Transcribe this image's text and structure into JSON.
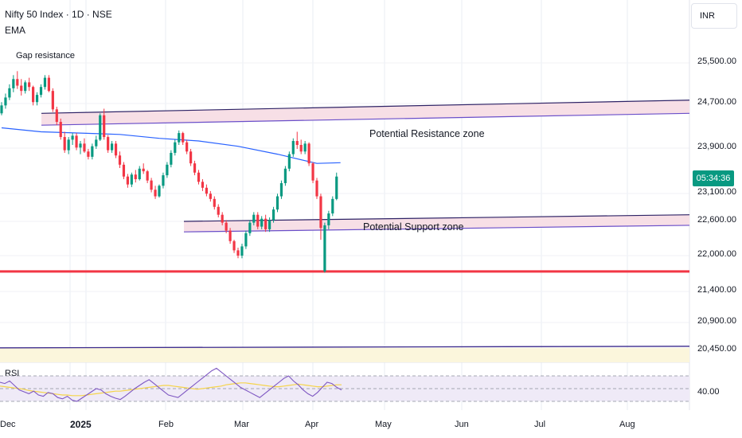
{
  "header": {
    "symbol_title": "Nifty 50 Index · 1D · NSE",
    "indicator": "EMA",
    "currency": "INR"
  },
  "annotations": {
    "gap_note": "Gap resistance",
    "resistance_zone": "Potential Resistance zone",
    "support_zone": "Potential Support zone"
  },
  "price_axis": {
    "labels": [
      "25,500.00",
      "24,700.00",
      "23,900.00",
      "23,100.00",
      "22,600.00",
      "22,000.00",
      "21,400.00",
      "20,900.00",
      "20,450.00"
    ],
    "current_tag": "05:34:36"
  },
  "rsi": {
    "label": "RSI",
    "level_label": "40.00"
  },
  "time_axis": {
    "labels": [
      "Dec",
      "2025",
      "Feb",
      "Mar",
      "Apr",
      "May",
      "Jun",
      "Jul",
      "Aug"
    ]
  },
  "colors": {
    "up": "#089981",
    "down": "#f23645",
    "ema": "#2962ff",
    "zone_line": "#6a4fc9",
    "zone_fill": "#f7dfe6",
    "support_level": "#f23645",
    "rsi_line": "#7e57c2",
    "rsi_ma": "#f5d44a"
  },
  "chart_data": {
    "type": "candlestick",
    "title": "Nifty 50 Index · 1D · NSE",
    "y_range": [
      20400,
      25900
    ],
    "candles": [
      [
        24180,
        24350,
        24150,
        24300
      ],
      [
        24300,
        24480,
        24250,
        24420
      ],
      [
        24420,
        24620,
        24380,
        24560
      ],
      [
        24560,
        24760,
        24500,
        24700
      ],
      [
        24700,
        24820,
        24550,
        24600
      ],
      [
        24600,
        24700,
        24450,
        24520
      ],
      [
        24520,
        24680,
        24480,
        24650
      ],
      [
        24650,
        24720,
        24520,
        24580
      ],
      [
        24580,
        24600,
        24300,
        24350
      ],
      [
        24350,
        24500,
        24300,
        24460
      ],
      [
        24460,
        24620,
        24420,
        24580
      ],
      [
        24580,
        24760,
        24540,
        24720
      ],
      [
        24720,
        24760,
        24500,
        24520
      ],
      [
        24520,
        24560,
        24200,
        24240
      ],
      [
        24240,
        24280,
        24000,
        24050
      ],
      [
        24050,
        24100,
        23780,
        23820
      ],
      [
        23820,
        23900,
        23580,
        23620
      ],
      [
        23620,
        23820,
        23560,
        23780
      ],
      [
        23780,
        23880,
        23700,
        23840
      ],
      [
        23840,
        23880,
        23620,
        23660
      ],
      [
        23660,
        23760,
        23560,
        23720
      ],
      [
        23720,
        23800,
        23580,
        23600
      ],
      [
        23600,
        23640,
        23480,
        23520
      ],
      [
        23520,
        23720,
        23480,
        23680
      ],
      [
        23680,
        23840,
        23640,
        23780
      ],
      [
        23780,
        24180,
        23760,
        24150
      ],
      [
        24150,
        24250,
        23780,
        23820
      ],
      [
        23820,
        23850,
        23580,
        23620
      ],
      [
        23620,
        23760,
        23580,
        23720
      ],
      [
        23720,
        23760,
        23500,
        23540
      ],
      [
        23540,
        23600,
        23350,
        23400
      ],
      [
        23400,
        23440,
        23180,
        23220
      ],
      [
        23220,
        23260,
        23050,
        23100
      ],
      [
        23100,
        23280,
        23060,
        23250
      ],
      [
        23250,
        23320,
        23130,
        23180
      ],
      [
        23180,
        23380,
        23160,
        23340
      ],
      [
        23340,
        23420,
        23260,
        23300
      ],
      [
        23300,
        23320,
        23120,
        23160
      ],
      [
        23160,
        23200,
        22980,
        23020
      ],
      [
        23020,
        23080,
        22880,
        22920
      ],
      [
        22920,
        23100,
        22900,
        23080
      ],
      [
        23080,
        23280,
        23040,
        23240
      ],
      [
        23240,
        23440,
        23200,
        23400
      ],
      [
        23400,
        23620,
        23360,
        23580
      ],
      [
        23580,
        23780,
        23540,
        23740
      ],
      [
        23740,
        23920,
        23700,
        23880
      ],
      [
        23880,
        23900,
        23700,
        23740
      ],
      [
        23740,
        23780,
        23560,
        23600
      ],
      [
        23600,
        23640,
        23380,
        23420
      ],
      [
        23420,
        23460,
        23240,
        23280
      ],
      [
        23280,
        23320,
        23100,
        23140
      ],
      [
        23140,
        23180,
        23000,
        23050
      ],
      [
        23050,
        23100,
        22920,
        22960
      ],
      [
        22960,
        23000,
        22840,
        22880
      ],
      [
        22880,
        22920,
        22720,
        22760
      ],
      [
        22760,
        22800,
        22600,
        22640
      ],
      [
        22640,
        22680,
        22480,
        22520
      ],
      [
        22520,
        22560,
        22360,
        22400
      ],
      [
        22400,
        22440,
        22200,
        22240
      ],
      [
        22240,
        22260,
        22060,
        22100
      ],
      [
        22100,
        22140,
        21980,
        22020
      ],
      [
        22020,
        22200,
        21980,
        22160
      ],
      [
        22160,
        22400,
        22120,
        22360
      ],
      [
        22360,
        22560,
        22320,
        22520
      ],
      [
        22520,
        22680,
        22480,
        22640
      ],
      [
        22640,
        22680,
        22420,
        22460
      ],
      [
        22460,
        22620,
        22420,
        22580
      ],
      [
        22580,
        22640,
        22380,
        22420
      ],
      [
        22420,
        22600,
        22380,
        22560
      ],
      [
        22560,
        22760,
        22520,
        22720
      ],
      [
        22720,
        22960,
        22680,
        22920
      ],
      [
        22920,
        23160,
        22880,
        23120
      ],
      [
        23120,
        23380,
        23080,
        23340
      ],
      [
        23340,
        23600,
        23300,
        23560
      ],
      [
        23560,
        23800,
        23520,
        23760
      ],
      [
        23760,
        23900,
        23640,
        23700
      ],
      [
        23700,
        23780,
        23560,
        23600
      ],
      [
        23600,
        23760,
        23560,
        23720
      ],
      [
        23720,
        23740,
        23380,
        23420
      ],
      [
        23420,
        23440,
        23120,
        23160
      ],
      [
        23160,
        23200,
        22880,
        22920
      ],
      [
        22920,
        22960,
        22260,
        22440
      ],
      [
        21780,
        22520,
        21760,
        22480
      ],
      [
        22480,
        22700,
        22420,
        22660
      ],
      [
        22660,
        22920,
        22620,
        22880
      ],
      [
        22880,
        23280,
        22860,
        23220
      ]
    ],
    "ema": [
      [
        0,
        23960
      ],
      [
        10,
        23900
      ],
      [
        20,
        23880
      ],
      [
        30,
        23860
      ],
      [
        40,
        23800
      ],
      [
        50,
        23760
      ],
      [
        60,
        23680
      ],
      [
        70,
        23560
      ],
      [
        80,
        23420
      ],
      [
        86,
        23430
      ]
    ],
    "support_level": 21780,
    "lower_level": 20620,
    "resistance_zone": {
      "bottom": [
        24000,
        24180
      ],
      "top": [
        24180,
        24380
      ]
    },
    "support_zone": {
      "bottom": [
        22380,
        22480
      ],
      "top": [
        22540,
        22640
      ]
    },
    "rsi_values": [
      60,
      58,
      62,
      55,
      48,
      45,
      42,
      46,
      40,
      38,
      44,
      42,
      36,
      34,
      38,
      32,
      30,
      35,
      40,
      45,
      50,
      48,
      42,
      38,
      35,
      33,
      38,
      44,
      50,
      55,
      60,
      64,
      58,
      52,
      46,
      40,
      38,
      36,
      42,
      48,
      54,
      60,
      66,
      72,
      78,
      82,
      76,
      70,
      64,
      58,
      52,
      48,
      44,
      40,
      36,
      42,
      48,
      54,
      60,
      66,
      70,
      62,
      56,
      48,
      42,
      38,
      44,
      52,
      60,
      58,
      52,
      48
    ],
    "rsi_ma_values": [
      54,
      53,
      52,
      51,
      50,
      49,
      47,
      46,
      45,
      44,
      43,
      42,
      41,
      40,
      40,
      39,
      39,
      39,
      40,
      41,
      42,
      43,
      44,
      45,
      46,
      46,
      47,
      48,
      49,
      50,
      51,
      52,
      53,
      54,
      55,
      55,
      54,
      53,
      52,
      51,
      50,
      49,
      50,
      51,
      52,
      53,
      54,
      56,
      57,
      58,
      59,
      59,
      58,
      57,
      56,
      55,
      54,
      53,
      53,
      54,
      55,
      56,
      57,
      56,
      55,
      54,
      53,
      53,
      54,
      55,
      56,
      56
    ],
    "x_labels": [
      "Dec",
      "2025",
      "Feb",
      "Mar",
      "Apr",
      "May",
      "Jun",
      "Jul",
      "Aug"
    ],
    "y_labels": [
      "25,500.00",
      "24,700.00",
      "23,900.00",
      "23,100.00",
      "22,600.00",
      "22,000.00",
      "21,400.00",
      "20,900.00",
      "20,450.00"
    ]
  }
}
